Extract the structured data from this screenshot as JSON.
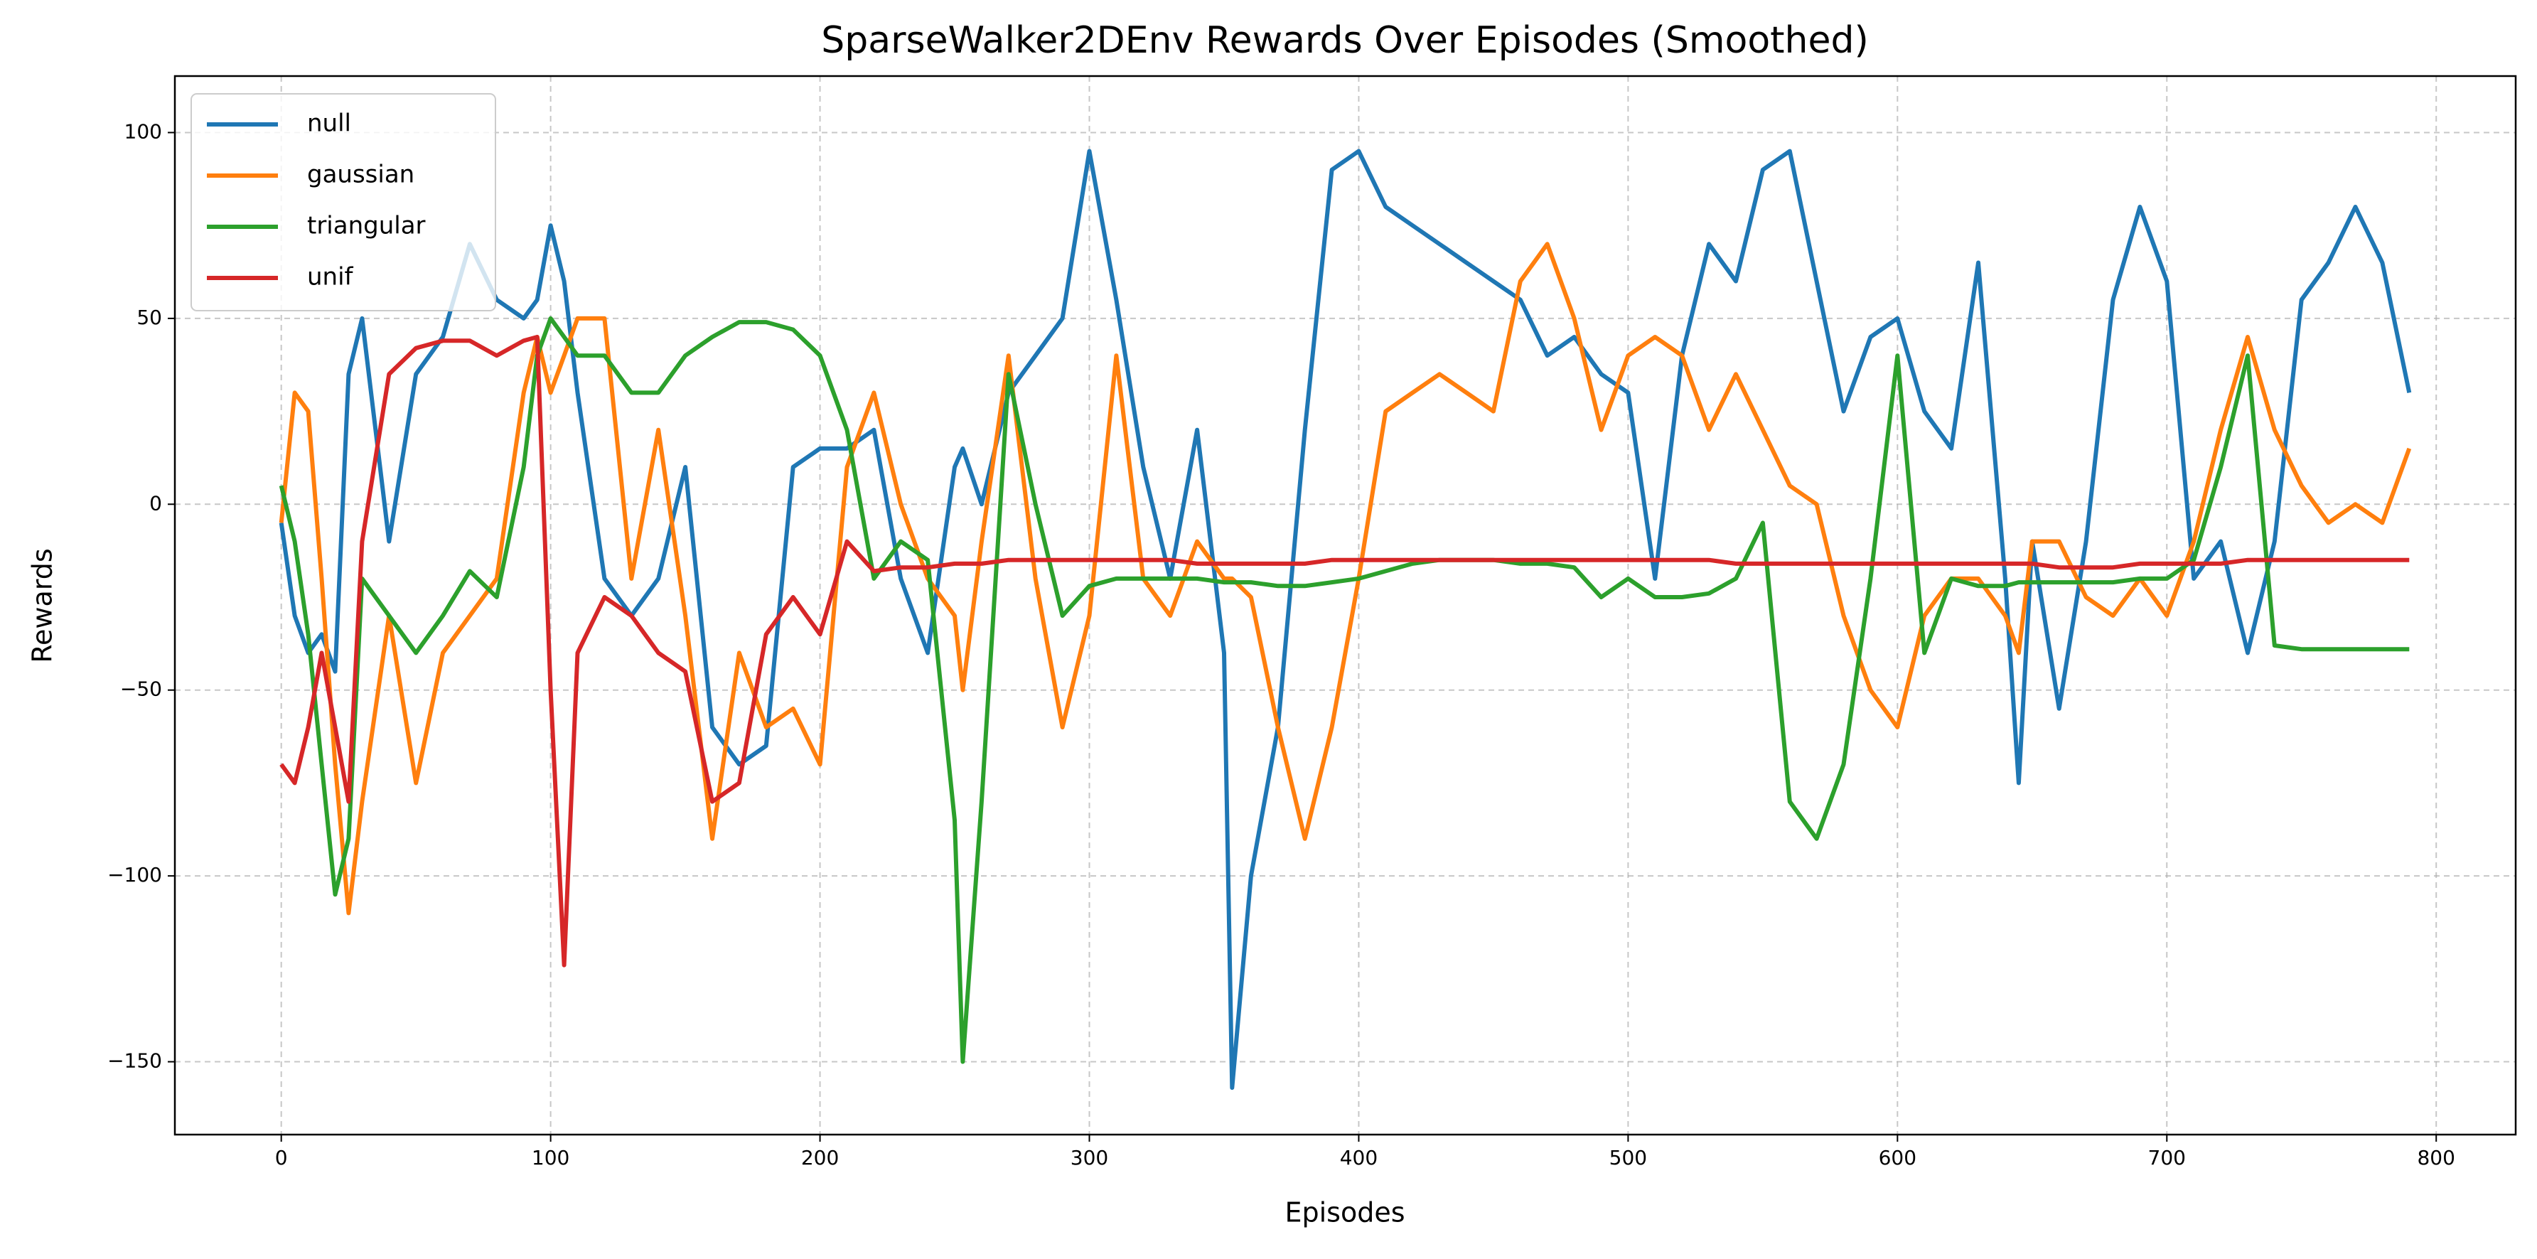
{
  "chart_data": {
    "type": "line",
    "title": "SparseWalker2DEnv Rewards Over Episodes (Smoothed)",
    "x_label": "Episodes",
    "y_label": "Rewards",
    "xlim": [
      -39.5,
      829.5
    ],
    "ylim": [
      -169.6,
      115.2
    ],
    "xticks": [
      0,
      100,
      200,
      300,
      400,
      500,
      600,
      700,
      800
    ],
    "yticks": [
      {
        "value": -150,
        "label": "−150"
      },
      {
        "value": -100,
        "label": "−100"
      },
      {
        "value": -50,
        "label": "−50"
      },
      0,
      50,
      100
    ],
    "grid": true,
    "legend": "upper left",
    "x": [
      0,
      5,
      10,
      15,
      20,
      25,
      30,
      40,
      50,
      60,
      70,
      80,
      90,
      95,
      100,
      105,
      110,
      120,
      130,
      140,
      150,
      160,
      170,
      180,
      190,
      200,
      210,
      220,
      230,
      240,
      250,
      253,
      260,
      270,
      280,
      290,
      300,
      310,
      320,
      330,
      340,
      350,
      353,
      360,
      370,
      380,
      390,
      400,
      410,
      420,
      430,
      440,
      450,
      460,
      470,
      480,
      490,
      500,
      510,
      520,
      530,
      540,
      550,
      560,
      570,
      580,
      590,
      600,
      610,
      620,
      630,
      640,
      645,
      650,
      660,
      670,
      680,
      690,
      700,
      710,
      720,
      730,
      740,
      750,
      760,
      770,
      780,
      790
    ],
    "series": [
      {
        "name": "null",
        "color": "#1f77b4",
        "values": [
          -5,
          -30,
          -40,
          -35,
          -45,
          35,
          50,
          -10,
          35,
          45,
          70,
          55,
          50,
          55,
          75,
          60,
          30,
          -20,
          -30,
          -20,
          10,
          -60,
          -70,
          -65,
          10,
          15,
          15,
          20,
          -20,
          -40,
          10,
          15,
          0,
          30,
          40,
          50,
          95,
          55,
          10,
          -20,
          20,
          -40,
          -157,
          -100,
          -60,
          20,
          90,
          95,
          80,
          75,
          70,
          65,
          60,
          55,
          40,
          45,
          35,
          30,
          -20,
          40,
          70,
          60,
          90,
          95,
          60,
          25,
          45,
          50,
          25,
          15,
          65,
          -20,
          -75,
          -10,
          -55,
          -10,
          55,
          80,
          60,
          -20,
          -10,
          -40,
          -10,
          55,
          65,
          80,
          65,
          30
        ]
      },
      {
        "name": "gaussian",
        "color": "#ff7f0e",
        "values": [
          -5,
          30,
          25,
          -20,
          -70,
          -110,
          -80,
          -30,
          -75,
          -40,
          -30,
          -20,
          30,
          45,
          30,
          40,
          50,
          50,
          -20,
          20,
          -30,
          -90,
          -40,
          -60,
          -55,
          -70,
          10,
          30,
          0,
          -20,
          -30,
          -50,
          -10,
          40,
          -20,
          -60,
          -30,
          40,
          -20,
          -30,
          -10,
          -20,
          -20,
          -25,
          -60,
          -90,
          -60,
          -20,
          25,
          30,
          35,
          30,
          25,
          60,
          70,
          50,
          20,
          40,
          45,
          40,
          20,
          35,
          20,
          5,
          0,
          -30,
          -50,
          -60,
          -30,
          -20,
          -20,
          -30,
          -40,
          -10,
          -10,
          -25,
          -30,
          -20,
          -30,
          -10,
          20,
          45,
          20,
          5,
          -5,
          0,
          -5,
          15
        ]
      },
      {
        "name": "triangular",
        "color": "#2ca02c",
        "values": [
          5,
          -10,
          -35,
          -70,
          -105,
          -90,
          -20,
          -30,
          -40,
          -30,
          -18,
          -25,
          10,
          40,
          50,
          45,
          40,
          40,
          30,
          30,
          40,
          45,
          49,
          49,
          47,
          40,
          20,
          -20,
          -10,
          -15,
          -85,
          -150,
          -80,
          35,
          0,
          -30,
          -22,
          -20,
          -20,
          -20,
          -20,
          -21,
          -21,
          -21,
          -22,
          -22,
          -21,
          -20,
          -18,
          -16,
          -15,
          -15,
          -15,
          -16,
          -16,
          -17,
          -25,
          -20,
          -25,
          -25,
          -24,
          -20,
          -5,
          -80,
          -90,
          -70,
          -20,
          40,
          -40,
          -20,
          -22,
          -22,
          -21,
          -21,
          -21,
          -21,
          -21,
          -20,
          -20,
          -15,
          10,
          40,
          -38,
          -39,
          -39,
          -39,
          -39,
          -39
        ]
      },
      {
        "name": "unif",
        "color": "#d62728",
        "values": [
          -70,
          -75,
          -60,
          -40,
          -60,
          -80,
          -10,
          35,
          42,
          44,
          44,
          40,
          44,
          45,
          -50,
          -124,
          -40,
          -25,
          -30,
          -40,
          -45,
          -80,
          -75,
          -35,
          -25,
          -35,
          -10,
          -18,
          -17,
          -17,
          -16,
          -16,
          -16,
          -15,
          -15,
          -15,
          -15,
          -15,
          -15,
          -15,
          -16,
          -16,
          -16,
          -16,
          -16,
          -16,
          -15,
          -15,
          -15,
          -15,
          -15,
          -15,
          -15,
          -15,
          -15,
          -15,
          -15,
          -15,
          -15,
          -15,
          -15,
          -16,
          -16,
          -16,
          -16,
          -16,
          -16,
          -16,
          -16,
          -16,
          -16,
          -16,
          -16,
          -16,
          -17,
          -17,
          -17,
          -16,
          -16,
          -16,
          -16,
          -15,
          -15,
          -15,
          -15,
          -15,
          -15,
          -15
        ]
      }
    ]
  }
}
